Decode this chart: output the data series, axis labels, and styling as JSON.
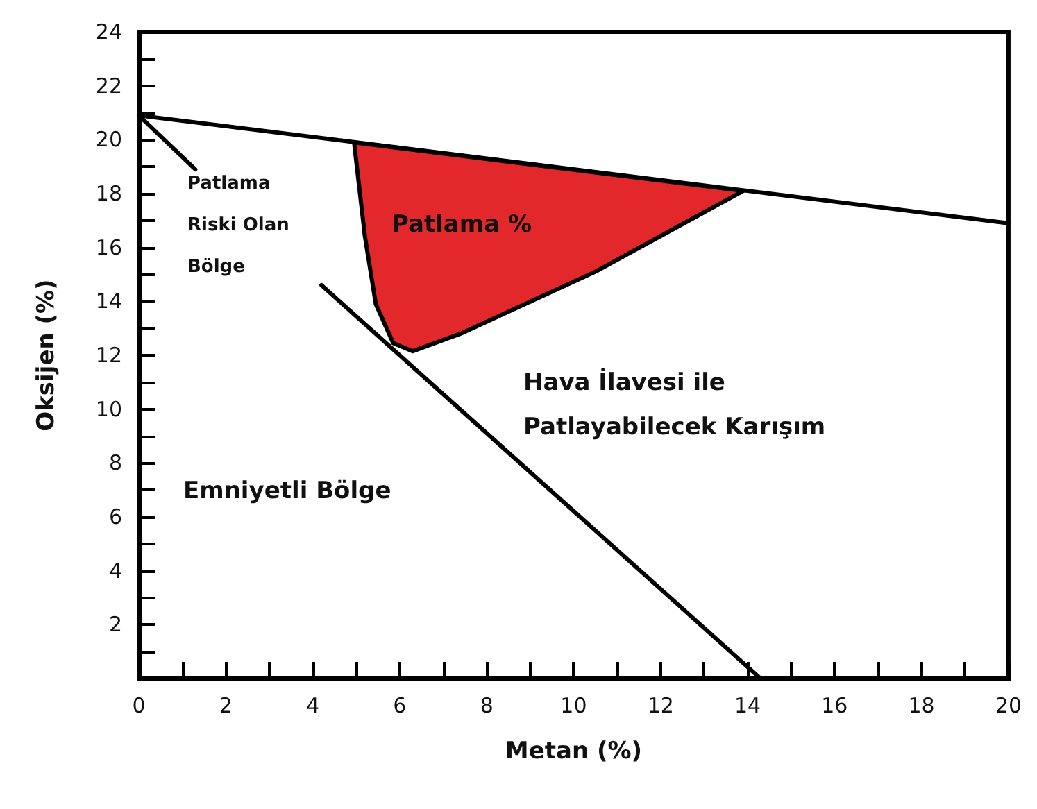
{
  "chart_data": {
    "type": "line",
    "xlabel": "Metan (%)",
    "ylabel": "Oksijen (%)",
    "xlim": [
      0,
      20
    ],
    "ylim": [
      0,
      24
    ],
    "xticks": [
      0,
      {
        "value": 1,
        "label": null
      },
      2,
      {
        "value": 3,
        "label": null
      },
      4,
      {
        "value": 5,
        "label": null
      },
      6,
      {
        "value": 7,
        "label": null
      },
      8,
      {
        "value": 9,
        "label": null
      },
      10,
      {
        "value": 11,
        "label": null
      },
      12,
      {
        "value": 13,
        "label": null
      },
      14,
      {
        "value": 15,
        "label": null
      },
      16,
      {
        "value": 17,
        "label": null
      },
      18,
      {
        "value": 19,
        "label": null
      },
      20
    ],
    "yticks": [
      {
        "value": 0,
        "label": null
      },
      {
        "value": 1,
        "label": null
      },
      2,
      {
        "value": 3,
        "label": null
      },
      4,
      {
        "value": 5,
        "label": null
      },
      6,
      {
        "value": 7,
        "label": null
      },
      8,
      {
        "value": 9,
        "label": null
      },
      10,
      {
        "value": 11,
        "label": null
      },
      12,
      {
        "value": 13,
        "label": null
      },
      14,
      {
        "value": 15,
        "label": null
      },
      16,
      {
        "value": 17,
        "label": null
      },
      18,
      {
        "value": 19,
        "label": null
      },
      20,
      {
        "value": 21,
        "label": null
      },
      22,
      {
        "value": 23,
        "label": null
      },
      24
    ],
    "marker": "none",
    "series": [
      {
        "type": "area",
        "color": "#e3282b",
        "x": [
          4.95,
          5.2,
          5.45,
          5.85,
          6.3,
          7.4,
          10.5,
          13.9,
          4.95
        ],
        "values": [
          19.9,
          16.4,
          13.9,
          12.45,
          12.15,
          12.8,
          15.1,
          18.1,
          19.9
        ]
      },
      {
        "color": "#000000",
        "x": [
          0,
          20
        ],
        "values": [
          20.9,
          16.9
        ]
      },
      {
        "color": "#000000",
        "x": [
          0,
          1.3
        ],
        "values": [
          20.9,
          18.9
        ]
      },
      {
        "color": "#000000",
        "x": [
          4.2,
          14.3
        ],
        "values": [
          14.6,
          0
        ]
      }
    ],
    "annotations": [
      "Patlama\nRiski Olan\nBölge",
      "Patlama %",
      "Hava İlavesi ile\nPatlayabilecek Karışım",
      "Emniyetli Bölge"
    ]
  }
}
